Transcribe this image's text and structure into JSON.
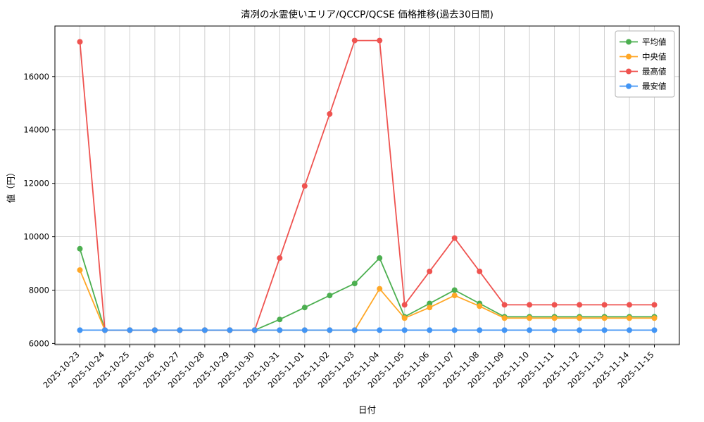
{
  "figure": {
    "title": "清冽の水霊使いエリア/QCCP/QCSE 価格推移(過去30日間)",
    "xlabel": "日付",
    "ylabel": "値（円）"
  },
  "chart_data": {
    "type": "line",
    "title": "清冽の水霊使いエリア/QCCP/QCSE 価格推移(過去30日間)",
    "xlabel": "日付",
    "ylabel": "値（円）",
    "grid": true,
    "legend_position": "upper right",
    "ylim": [
      5958,
      17892
    ],
    "yticks": [
      6000,
      8000,
      10000,
      12000,
      14000,
      16000
    ],
    "categories": [
      "2025-10-23",
      "2025-10-24",
      "2025-10-25",
      "2025-10-26",
      "2025-10-27",
      "2025-10-28",
      "2025-10-29",
      "2025-10-30",
      "2025-10-31",
      "2025-11-01",
      "2025-11-02",
      "2025-11-03",
      "2025-11-04",
      "2025-11-05",
      "2025-11-06",
      "2025-11-07",
      "2025-11-08",
      "2025-11-09",
      "2025-11-10",
      "2025-11-11",
      "2025-11-12",
      "2025-11-13",
      "2025-11-14",
      "2025-11-15"
    ],
    "series": [
      {
        "name": "平均値",
        "color": "#4caf50",
        "values": [
          9550,
          6500,
          6500,
          6500,
          6500,
          6500,
          6500,
          6500,
          6900,
          7350,
          7800,
          8250,
          9200,
          7000,
          7500,
          8000,
          7500,
          7000,
          7000,
          7000,
          7000,
          7000,
          7000,
          7000
        ]
      },
      {
        "name": "中央値",
        "color": "#ffa726",
        "values": [
          8750,
          6500,
          6500,
          6500,
          6500,
          6500,
          6500,
          6500,
          6500,
          6500,
          6500,
          6500,
          8050,
          6950,
          7350,
          7800,
          7400,
          6950,
          6950,
          6950,
          6950,
          6950,
          6950,
          6950
        ]
      },
      {
        "name": "最高値",
        "color": "#ef5350",
        "values": [
          17300,
          6500,
          6500,
          6500,
          6500,
          6500,
          6500,
          6500,
          9200,
          11900,
          14600,
          17350,
          17350,
          7450,
          8700,
          9950,
          8700,
          7450,
          7450,
          7450,
          7450,
          7450,
          7450,
          7450
        ]
      },
      {
        "name": "最安値",
        "color": "#4295f5",
        "values": [
          6500,
          6500,
          6500,
          6500,
          6500,
          6500,
          6500,
          6500,
          6500,
          6500,
          6500,
          6500,
          6500,
          6500,
          6500,
          6500,
          6500,
          6500,
          6500,
          6500,
          6500,
          6500,
          6500,
          6500
        ]
      }
    ]
  }
}
